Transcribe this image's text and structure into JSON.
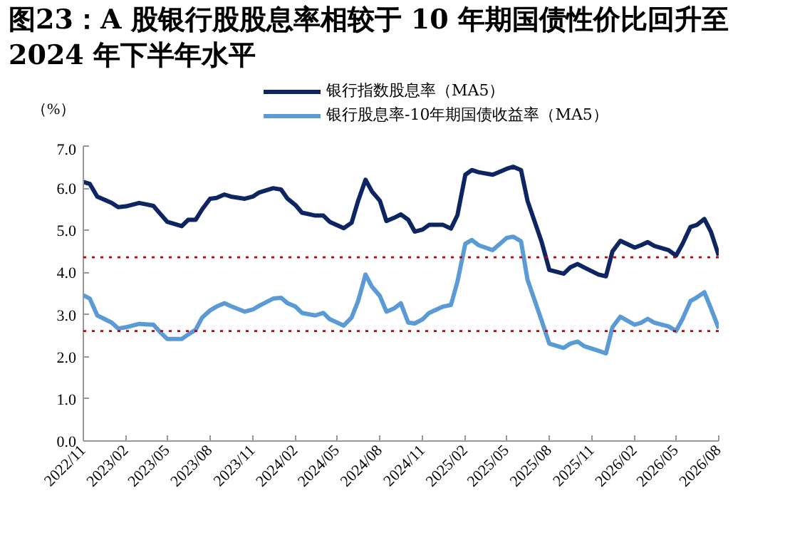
{
  "chart_data": {
    "type": "line",
    "title": "图23：A 股银行股股息率相较于 10 年期国债性价比回升至 2024 年下半年水平",
    "ylabel": "（%）",
    "x": [
      "2022-11-01",
      "2022-11-15",
      "2022-12-01",
      "2023-01-01",
      "2023-01-15",
      "2023-02-01",
      "2023-03-01",
      "2023-03-15",
      "2023-04-01",
      "2023-04-15",
      "2023-05-01",
      "2023-06-01",
      "2023-06-15",
      "2023-07-01",
      "2023-07-15",
      "2023-08-01",
      "2023-08-15",
      "2023-09-01",
      "2023-09-15",
      "2023-10-15",
      "2023-11-01",
      "2023-11-15",
      "2023-12-15",
      "2024-01-01",
      "2024-01-15",
      "2024-02-01",
      "2024-02-15",
      "2024-03-15",
      "2024-04-01",
      "2024-04-15",
      "2024-05-15",
      "2024-06-01",
      "2024-06-15",
      "2024-07-01",
      "2024-07-15",
      "2024-08-01",
      "2024-08-15",
      "2024-09-01",
      "2024-09-15",
      "2024-10-01",
      "2024-10-15",
      "2024-11-01",
      "2024-11-15",
      "2024-12-15",
      "2025-01-01",
      "2025-01-15",
      "2025-02-01",
      "2025-02-15",
      "2025-03-01",
      "2025-04-01",
      "2025-05-01",
      "2025-05-15",
      "2025-06-01",
      "2025-06-15",
      "2025-07-15",
      "2025-08-01",
      "2025-09-01",
      "2025-09-15",
      "2025-10-01",
      "2025-10-15",
      "2025-11-15",
      "2025-12-01",
      "2025-12-15",
      "2026-01-01",
      "2026-02-01",
      "2026-02-15",
      "2026-03-01",
      "2026-03-15",
      "2026-04-15",
      "2026-05-01",
      "2026-05-15",
      "2026-06-01",
      "2026-06-15",
      "2026-07-01",
      "2026-07-15",
      "2026-08-01"
    ],
    "series": [
      {
        "name": "银行指数股息率（MA5）",
        "color": "#0d2561",
        "values": [
          6.15,
          6.1,
          5.8,
          5.65,
          5.55,
          5.57,
          5.65,
          5.62,
          5.58,
          5.4,
          5.2,
          5.1,
          5.25,
          5.25,
          5.5,
          5.75,
          5.77,
          5.85,
          5.8,
          5.75,
          5.8,
          5.9,
          6.0,
          5.97,
          5.75,
          5.6,
          5.42,
          5.35,
          5.35,
          5.2,
          5.05,
          5.18,
          5.7,
          6.2,
          5.92,
          5.7,
          5.22,
          5.3,
          5.38,
          5.25,
          4.97,
          5.02,
          5.13,
          5.13,
          5.04,
          5.36,
          6.32,
          6.43,
          6.38,
          6.32,
          6.46,
          6.51,
          6.43,
          5.7,
          4.74,
          4.06,
          3.97,
          4.12,
          4.2,
          4.12,
          3.95,
          3.91,
          4.5,
          4.75,
          4.59,
          4.65,
          4.72,
          4.63,
          4.53,
          4.4,
          4.68,
          5.08,
          5.13,
          5.27,
          4.97,
          4.4
        ]
      },
      {
        "name": "银行股息率-10年期国债收益率（MA5）",
        "color": "#5b9bd5",
        "values": [
          3.46,
          3.38,
          2.98,
          2.81,
          2.67,
          2.7,
          2.78,
          2.77,
          2.76,
          2.59,
          2.42,
          2.42,
          2.53,
          2.64,
          2.93,
          3.1,
          3.19,
          3.27,
          3.2,
          3.07,
          3.12,
          3.21,
          3.38,
          3.4,
          3.27,
          3.19,
          3.04,
          2.98,
          3.04,
          2.89,
          2.74,
          2.93,
          3.32,
          3.95,
          3.66,
          3.44,
          3.07,
          3.15,
          3.27,
          2.81,
          2.79,
          2.89,
          3.04,
          3.19,
          3.23,
          3.78,
          4.68,
          4.77,
          4.65,
          4.53,
          4.82,
          4.85,
          4.74,
          3.83,
          2.87,
          2.31,
          2.21,
          2.31,
          2.36,
          2.25,
          2.14,
          2.08,
          2.7,
          2.95,
          2.76,
          2.81,
          2.9,
          2.81,
          2.72,
          2.61,
          2.9,
          3.32,
          3.41,
          3.53,
          3.15,
          2.67
        ]
      }
    ],
    "xlim": [
      "2022-11-01",
      "2026-08-01"
    ],
    "xticks": [
      {
        "value": "2022-11",
        "label": "2022/11"
      },
      {
        "value": "2023-02",
        "label": "2023/02"
      },
      {
        "value": "2023-05",
        "label": "2023/05"
      },
      {
        "value": "2023-08",
        "label": "2023/08"
      },
      {
        "value": "2023-11",
        "label": "2023/11"
      },
      {
        "value": "2024-02",
        "label": "2024/02"
      },
      {
        "value": "2024-05",
        "label": "2024/05"
      },
      {
        "value": "2024-08",
        "label": "2024/08"
      },
      {
        "value": "2024-11",
        "label": "2024/11"
      },
      {
        "value": "2025-02",
        "label": "2025/02"
      },
      {
        "value": "2025-05",
        "label": "2025/05"
      },
      {
        "value": "2025-08",
        "label": "2025/08"
      },
      {
        "value": "2025-11",
        "label": "2025/11"
      },
      {
        "value": "2026-02",
        "label": "2026/02"
      },
      {
        "value": "2026-05",
        "label": "2026/05"
      },
      {
        "value": "2026-08",
        "label": "2026/08"
      }
    ],
    "ylim": [
      0,
      7
    ],
    "yticks": [
      {
        "value": 0,
        "label": "0.0"
      },
      {
        "value": 1,
        "label": "1.0"
      },
      {
        "value": 2,
        "label": "2.0"
      },
      {
        "value": 3,
        "label": "3.0"
      },
      {
        "value": 4,
        "label": "4.0"
      },
      {
        "value": 5,
        "label": "5.0"
      },
      {
        "value": 6,
        "label": "6.0"
      },
      {
        "value": 7,
        "label": "7.0"
      }
    ],
    "ref_lines": [
      {
        "axis": "y",
        "value": 4.36,
        "color": "#c00000",
        "line_style": "dotted"
      },
      {
        "axis": "y",
        "value": 2.61,
        "color": "#c00000",
        "line_style": "dotted"
      }
    ],
    "legend": "top",
    "line_style": "solid",
    "grid": false
  }
}
